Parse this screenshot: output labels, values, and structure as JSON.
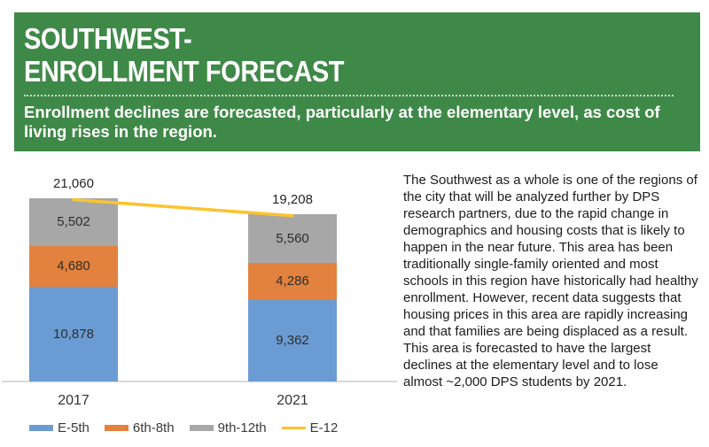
{
  "header": {
    "title_line1": "SOUTHWEST-",
    "title_line2": "ENROLLMENT FORECAST",
    "subtitle": "Enrollment declines are forecasted, particularly at the elementary level, as cost of living rises in the region.",
    "background_color": "#3F8948",
    "text_color": "#FFFFFF"
  },
  "chart_data": {
    "type": "bar",
    "stacked": true,
    "categories": [
      "2017",
      "2021"
    ],
    "series": [
      {
        "name": "E-5th",
        "color": "#6A9CD3",
        "values": [
          10878,
          9362
        ],
        "labels": [
          "10,878",
          "9,362"
        ]
      },
      {
        "name": "6th-8th",
        "color": "#E2823E",
        "values": [
          4680,
          4286
        ],
        "labels": [
          "4,680",
          "4,286"
        ]
      },
      {
        "name": "9th-12th",
        "color": "#A7A7A7",
        "values": [
          5502,
          5560
        ],
        "labels": [
          "5,502",
          "5,560"
        ]
      }
    ],
    "line_series": {
      "name": "E-12",
      "color": "#FCC32F",
      "values": [
        21060,
        19208
      ]
    },
    "totals": [
      21060,
      19208
    ],
    "totals_labels": [
      "21,060",
      "19,208"
    ],
    "legend": [
      "E-5th",
      "6th-8th",
      "9th-12th",
      "E-12"
    ],
    "legend_position": "bottom",
    "axis_color": "#D9D9D9",
    "grid": false,
    "ylim": [
      0,
      22000
    ]
  },
  "body_text": "The Southwest as a whole is one of the regions of the city that will be analyzed further by DPS research partners, due to the rapid change in demographics and housing costs that is likely to happen in the near future. This area has been traditionally single-family oriented and most schools in this region have historically had healthy enrollment. However, recent data suggests that housing prices in this area are rapidly increasing and that families are being displaced as a result. This area is forecasted to have the largest declines at the elementary level and to lose almost ~2,000 DPS students by 2021."
}
